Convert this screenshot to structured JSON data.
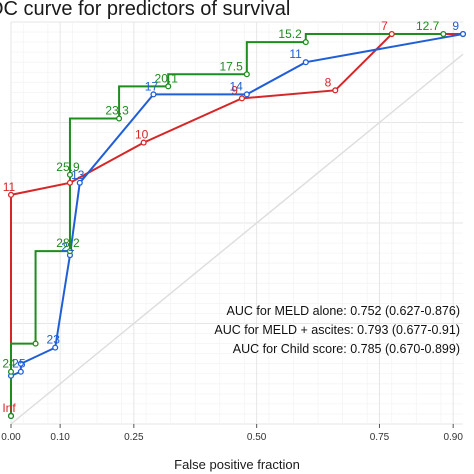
{
  "chart_data": {
    "type": "line",
    "title": "OC curve for predictors of survival",
    "xlabel": "False positive fraction",
    "ylabel": "",
    "xlim": [
      0,
      0.92
    ],
    "ylim": [
      0,
      1
    ],
    "x_ticks": [
      "0.00",
      "0.10",
      "0.25",
      "0.50",
      "0.75",
      "0.90"
    ],
    "x_tick_values": [
      0.0,
      0.1,
      0.25,
      0.5,
      0.75,
      0.9
    ],
    "grid": true,
    "diagonal_reference": true,
    "annotations": [
      "AUC for MELD alone: 0.752 (0.627-0.876)",
      "AUC for MELD + ascites: 0.793 (0.677-0.91)",
      "AUC for Child score: 0.785 (0.670-0.899)"
    ],
    "series": [
      {
        "color": "#d62728",
        "step": false,
        "points": [
          {
            "x": 0.0,
            "y": 0.02,
            "label": "Inf"
          },
          {
            "x": 0.0,
            "y": 0.57,
            "label": "11"
          },
          {
            "x": 0.12,
            "y": 0.6,
            "label": ""
          },
          {
            "x": 0.27,
            "y": 0.7,
            "label": "10"
          },
          {
            "x": 0.47,
            "y": 0.81,
            "label": "9"
          },
          {
            "x": 0.66,
            "y": 0.83,
            "label": "8"
          },
          {
            "x": 0.775,
            "y": 0.97,
            "label": "7"
          },
          {
            "x": 0.92,
            "y": 0.97,
            "label": ""
          }
        ]
      },
      {
        "color": "#1f5fd6",
        "step": false,
        "points": [
          {
            "x": 0.0,
            "y": 0.02,
            "label": ""
          },
          {
            "x": 0.0,
            "y": 0.12,
            "label": ""
          },
          {
            "x": 0.02,
            "y": 0.13,
            "label": "25"
          },
          {
            "x": 0.02,
            "y": 0.15,
            "label": ""
          },
          {
            "x": 0.09,
            "y": 0.19,
            "label": "23"
          },
          {
            "x": 0.12,
            "y": 0.42,
            "label": "21"
          },
          {
            "x": 0.14,
            "y": 0.6,
            "label": "13"
          },
          {
            "x": 0.29,
            "y": 0.82,
            "label": "17"
          },
          {
            "x": 0.48,
            "y": 0.82,
            "label": "14"
          },
          {
            "x": 0.6,
            "y": 0.9,
            "label": "11"
          },
          {
            "x": 0.92,
            "y": 0.97,
            "label": "9"
          }
        ]
      },
      {
        "color": "#1e8c1e",
        "step": true,
        "points": [
          {
            "x": 0.0,
            "y": 0.02,
            "label": ""
          },
          {
            "x": 0.0,
            "y": 0.13,
            "label": "24"
          },
          {
            "x": 0.05,
            "y": 0.2,
            "label": ""
          },
          {
            "x": 0.12,
            "y": 0.43,
            "label": "28.2"
          },
          {
            "x": 0.12,
            "y": 0.62,
            "label": "25.9"
          },
          {
            "x": 0.22,
            "y": 0.76,
            "label": "23.3"
          },
          {
            "x": 0.32,
            "y": 0.84,
            "label": "20.1"
          },
          {
            "x": 0.48,
            "y": 0.87,
            "label": "17.5"
          },
          {
            "x": 0.6,
            "y": 0.95,
            "label": "15.2"
          },
          {
            "x": 0.88,
            "y": 0.97,
            "label": "12.7"
          }
        ]
      }
    ]
  }
}
